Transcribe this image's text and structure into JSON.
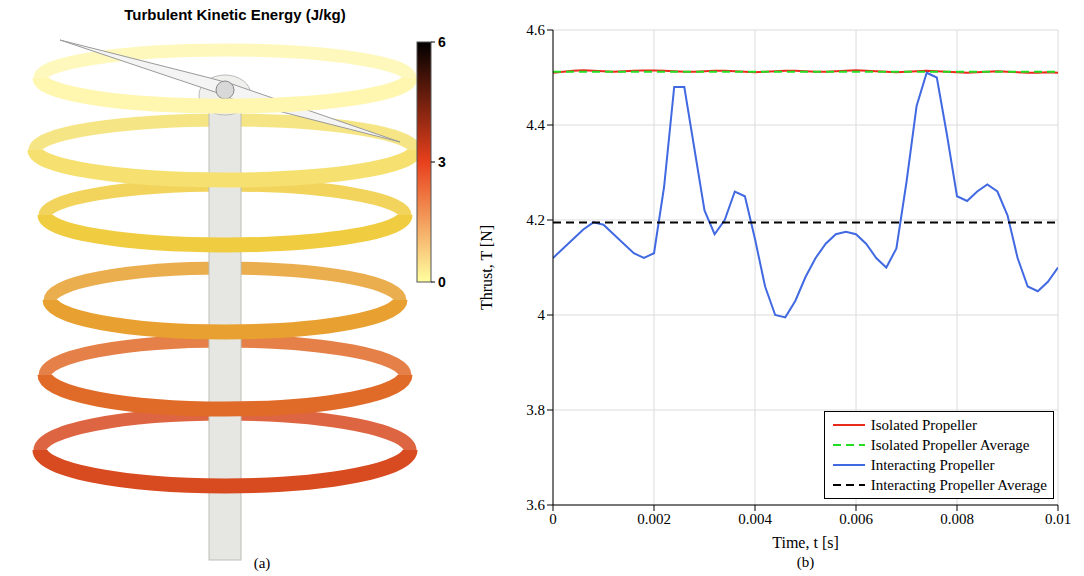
{
  "chart_data": [
    {
      "type": "render",
      "label": "(a)",
      "title": "Turbulent Kinetic Energy (J/kg)",
      "colorbar": {
        "range": [
          0,
          6
        ],
        "ticks": [
          0,
          3,
          6
        ],
        "colors": [
          "#ffffa0",
          "#e8401c",
          "#000000"
        ]
      }
    },
    {
      "type": "line",
      "label": "(b)",
      "xlabel": "Time, t [s]",
      "ylabel": "Thrust, T [N]",
      "x": [
        0,
        0.0002,
        0.0004,
        0.0006,
        0.0008,
        0.001,
        0.0012,
        0.0014,
        0.0016,
        0.0018,
        0.002,
        0.0022,
        0.0024,
        0.0026,
        0.0028,
        0.003,
        0.0032,
        0.0034,
        0.0036,
        0.0038,
        0.004,
        0.0042,
        0.0044,
        0.0046,
        0.0048,
        0.005,
        0.0052,
        0.0054,
        0.0056,
        0.0058,
        0.006,
        0.0062,
        0.0064,
        0.0066,
        0.0068,
        0.007,
        0.0072,
        0.0074,
        0.0076,
        0.0078,
        0.008,
        0.0082,
        0.0084,
        0.0086,
        0.0088,
        0.009,
        0.0092,
        0.0094,
        0.0096,
        0.0098,
        0.01
      ],
      "xlim": [
        0,
        0.01
      ],
      "xticks": [
        0,
        0.002,
        0.004,
        0.006,
        0.008,
        0.01
      ],
      "ylim": [
        3.6,
        4.6
      ],
      "yticks": [
        3.6,
        3.8,
        4,
        4.2,
        4.4,
        4.6
      ],
      "grid": true,
      "legend": "bottom right",
      "series": [
        {
          "name": "Isolated Propeller",
          "color": "#e8291c",
          "line_style": "solid",
          "values": [
            4.51,
            4.512,
            4.514,
            4.515,
            4.514,
            4.513,
            4.512,
            4.513,
            4.514,
            4.515,
            4.515,
            4.514,
            4.513,
            4.512,
            4.512,
            4.513,
            4.514,
            4.514,
            4.513,
            4.512,
            4.511,
            4.512,
            4.513,
            4.514,
            4.514,
            4.513,
            4.512,
            4.512,
            4.513,
            4.514,
            4.515,
            4.514,
            4.513,
            4.512,
            4.511,
            4.512,
            4.513,
            4.514,
            4.513,
            4.512,
            4.511,
            4.51,
            4.511,
            4.512,
            4.513,
            4.512,
            4.511,
            4.51,
            4.51,
            4.511,
            4.51
          ]
        },
        {
          "name": "Isolated Propeller Average",
          "color": "#22dd22",
          "line_style": "dashed",
          "values": [
            4.512,
            4.512,
            4.512,
            4.512,
            4.512,
            4.512,
            4.512,
            4.512,
            4.512,
            4.512,
            4.512,
            4.512,
            4.512,
            4.512,
            4.512,
            4.512,
            4.512,
            4.512,
            4.512,
            4.512,
            4.512,
            4.512,
            4.512,
            4.512,
            4.512,
            4.512,
            4.512,
            4.512,
            4.512,
            4.512,
            4.512,
            4.512,
            4.512,
            4.512,
            4.512,
            4.512,
            4.512,
            4.512,
            4.512,
            4.512,
            4.512,
            4.512,
            4.512,
            4.512,
            4.512,
            4.512,
            4.512,
            4.512,
            4.512,
            4.512,
            4.512
          ]
        },
        {
          "name": "Interacting Propeller",
          "color": "#4169e1",
          "line_style": "solid",
          "values": [
            4.12,
            4.14,
            4.16,
            4.18,
            4.195,
            4.19,
            4.17,
            4.15,
            4.13,
            4.12,
            4.13,
            4.27,
            4.48,
            4.48,
            4.35,
            4.22,
            4.17,
            4.2,
            4.26,
            4.25,
            4.16,
            4.06,
            4,
            3.995,
            4.03,
            4.08,
            4.12,
            4.15,
            4.17,
            4.175,
            4.17,
            4.15,
            4.12,
            4.1,
            4.14,
            4.28,
            4.44,
            4.51,
            4.5,
            4.38,
            4.25,
            4.24,
            4.26,
            4.275,
            4.26,
            4.21,
            4.12,
            4.06,
            4.05,
            4.07,
            4.1
          ]
        },
        {
          "name": "Interacting Propeller Average",
          "color": "#000000",
          "line_style": "dashed",
          "values": [
            4.195,
            4.195,
            4.195,
            4.195,
            4.195,
            4.195,
            4.195,
            4.195,
            4.195,
            4.195,
            4.195,
            4.195,
            4.195,
            4.195,
            4.195,
            4.195,
            4.195,
            4.195,
            4.195,
            4.195,
            4.195,
            4.195,
            4.195,
            4.195,
            4.195,
            4.195,
            4.195,
            4.195,
            4.195,
            4.195,
            4.195,
            4.195,
            4.195,
            4.195,
            4.195,
            4.195,
            4.195,
            4.195,
            4.195,
            4.195,
            4.195,
            4.195,
            4.195,
            4.195,
            4.195,
            4.195,
            4.195,
            4.195,
            4.195,
            4.195,
            4.195
          ]
        }
      ]
    }
  ]
}
